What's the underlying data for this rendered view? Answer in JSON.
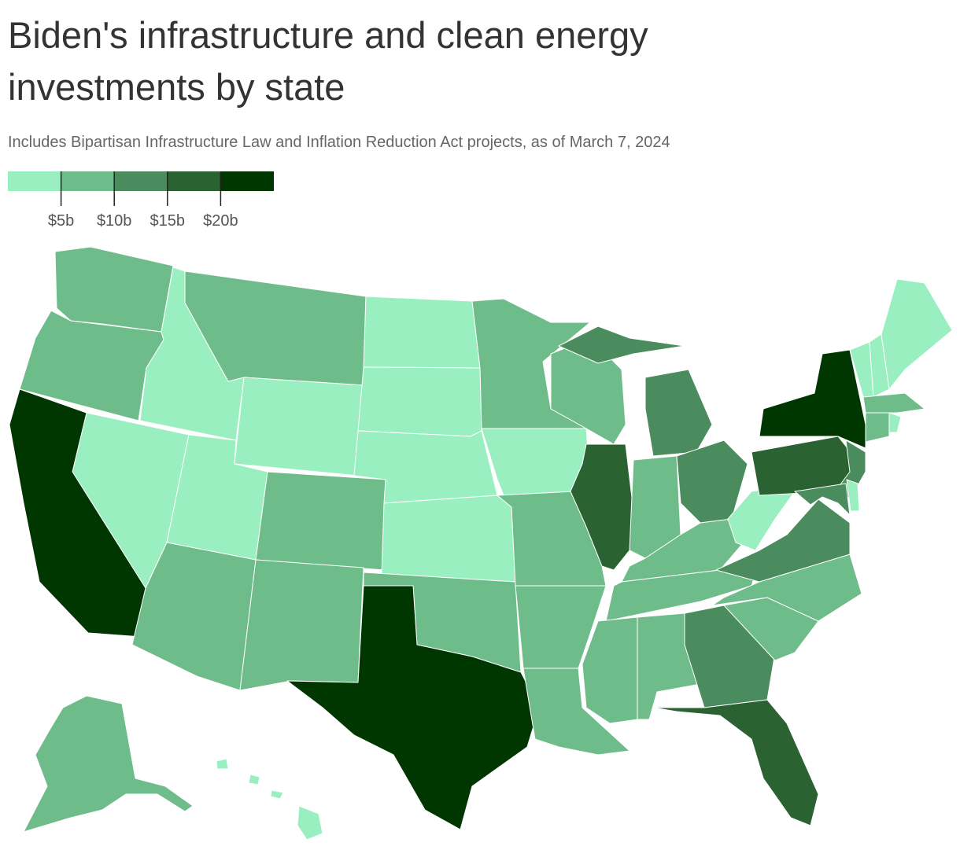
{
  "chart_data": {
    "type": "choropleth",
    "title_lines": [
      "Biden's infrastructure and clean energy",
      "investments by state"
    ],
    "subtitle": "Includes Bipartisan Infrastructure Law and Inflation Reduction Act projects, as of March 7, 2024",
    "legend_colors": [
      "#99efc0",
      "#6fbc8b",
      "#4b8c5e",
      "#2a6232",
      "#003600"
    ],
    "xlim": [
      0,
      25
    ],
    "xticks": [
      {
        "value": 5,
        "label": "$5b"
      },
      {
        "value": 10,
        "label": "$10b"
      },
      {
        "value": 15,
        "label": "$15b"
      },
      {
        "value": 20,
        "label": "$20b"
      }
    ],
    "values": [
      7,
      7,
      3,
      7,
      3,
      3,
      24,
      3,
      7,
      7,
      7,
      3,
      3,
      3,
      3,
      7,
      24,
      7,
      3,
      7,
      7,
      7,
      7,
      17,
      12,
      7,
      12,
      7,
      7,
      7,
      7,
      12,
      17,
      7,
      7,
      12,
      3,
      17,
      24,
      12,
      12,
      3,
      3,
      3,
      3,
      7,
      7,
      3,
      3,
      7
    ]
  }
}
